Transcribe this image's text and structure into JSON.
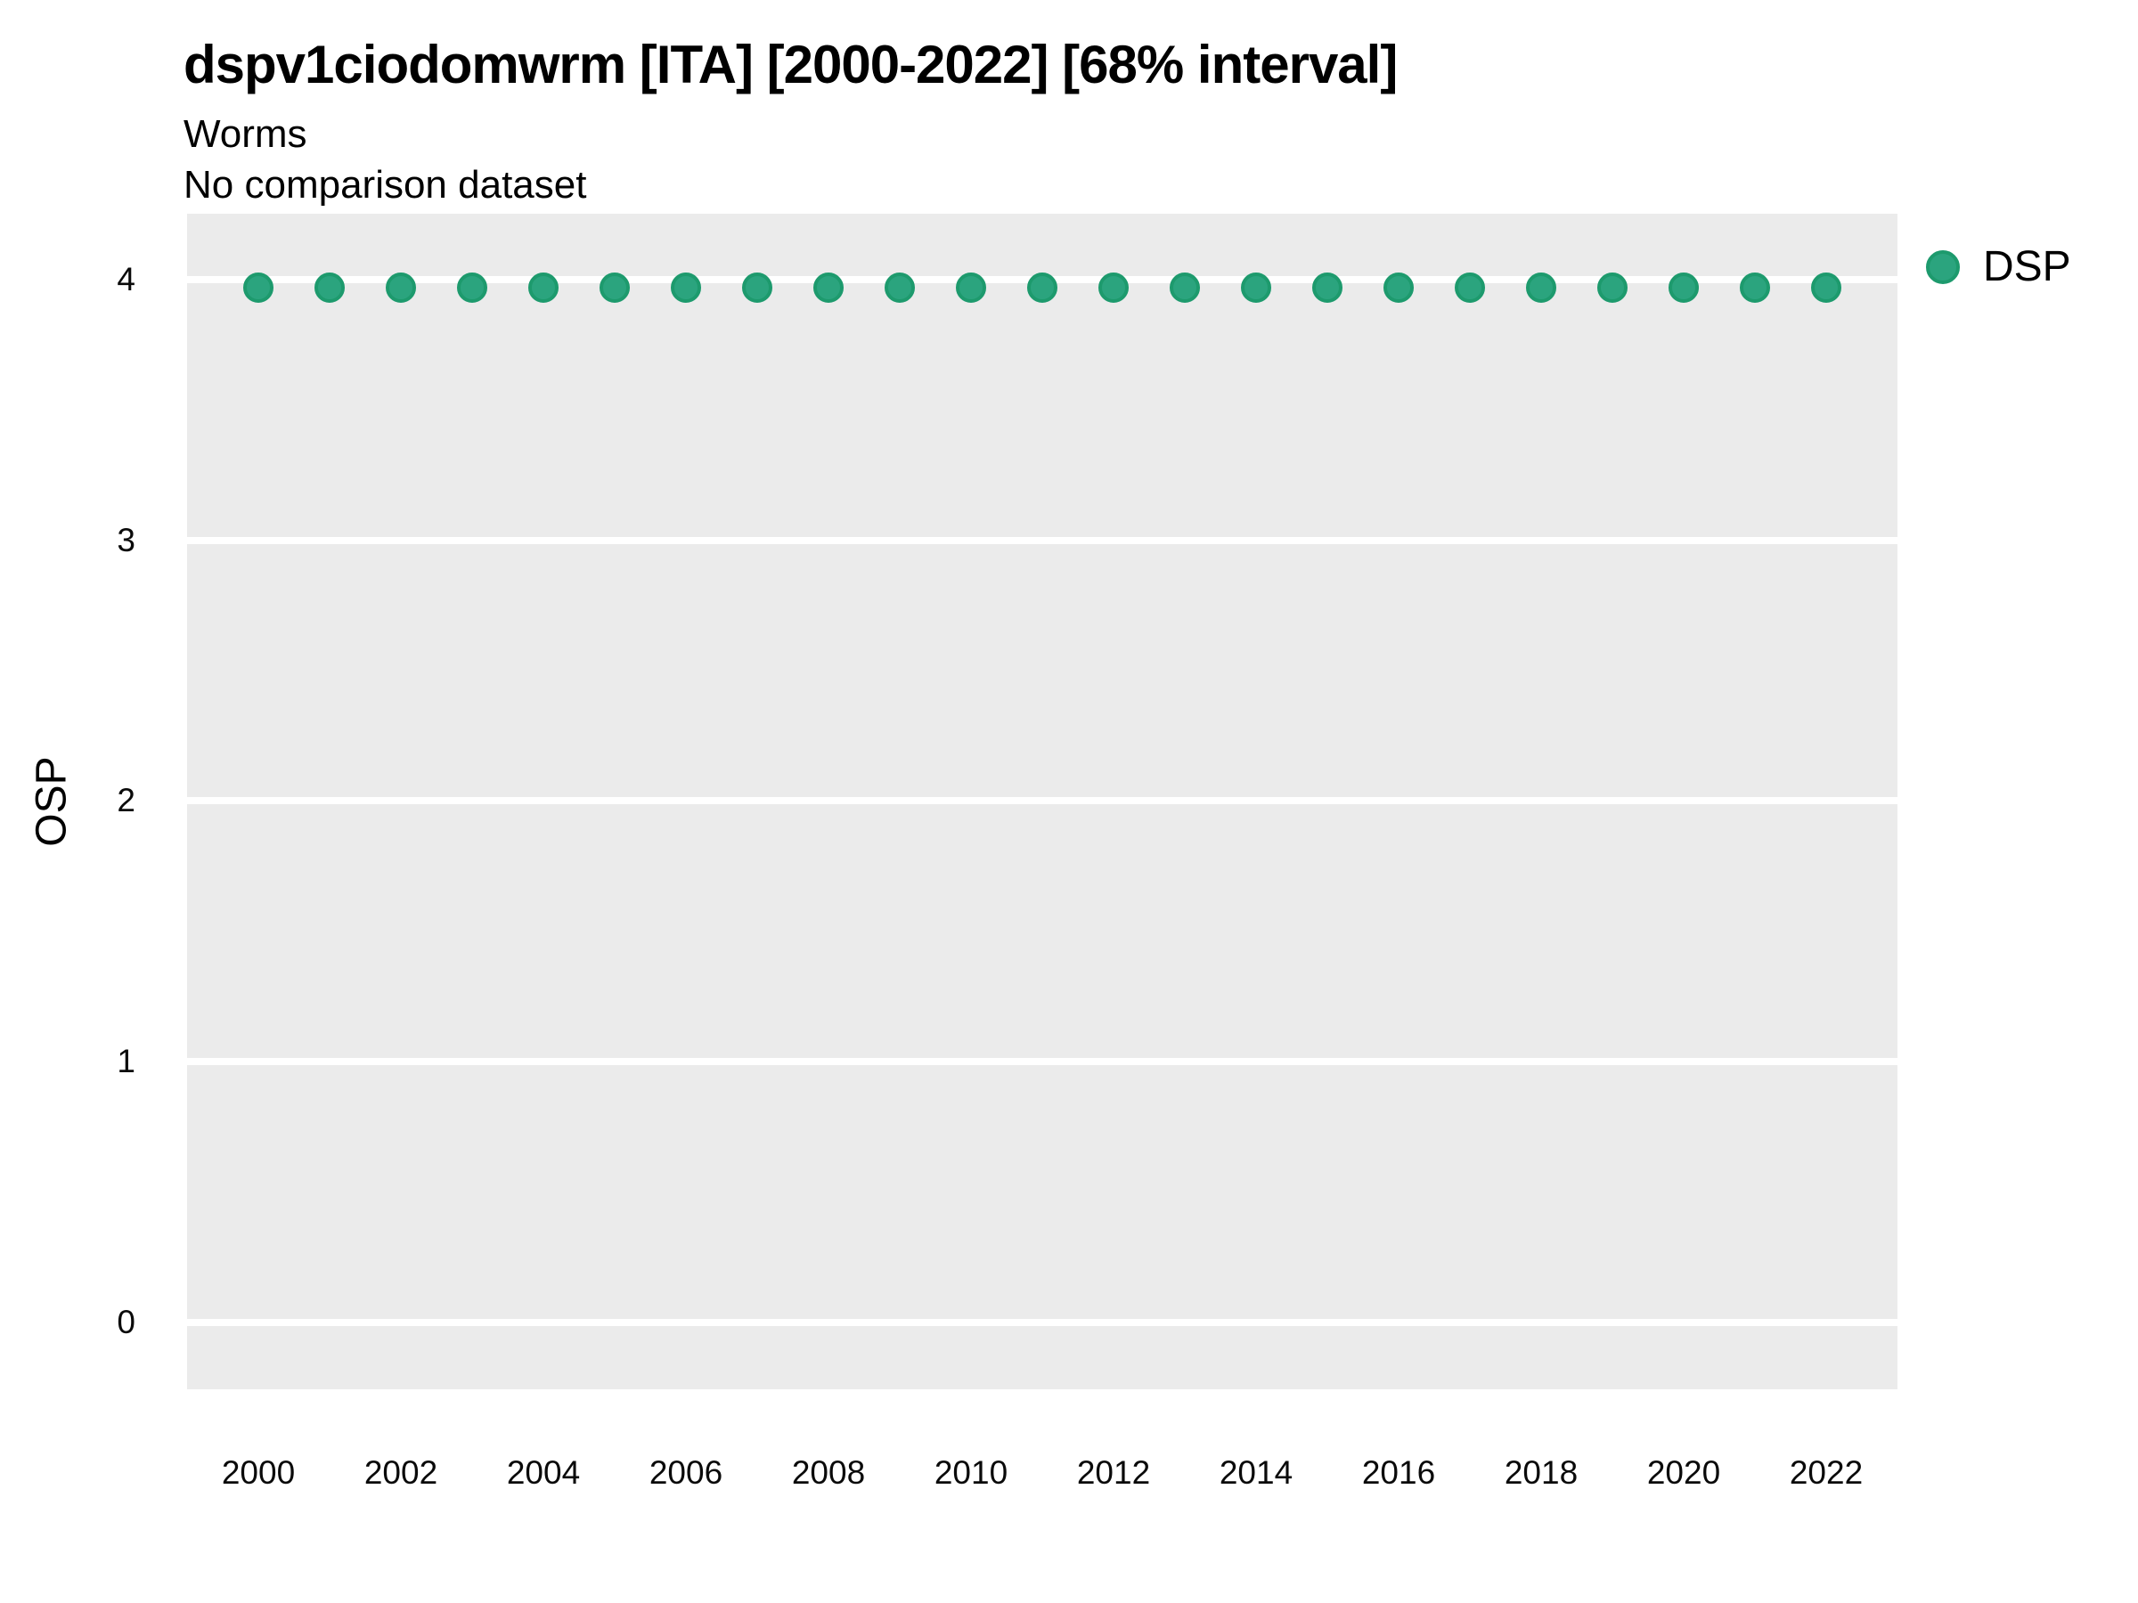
{
  "header": {
    "title": "dspv1ciodomwrm [ITA] [2000-2022] [68% interval]",
    "subtitle": "Worms",
    "note": "No comparison dataset"
  },
  "colors": {
    "panel_background": "#ebebeb",
    "gridline": "#ffffff",
    "point_fill": "#2ba47e",
    "point_edge": "#1d9a6d",
    "text": "#0a0a0a"
  },
  "legend": {
    "position": "top-right-outside",
    "items": [
      {
        "label": "DSP",
        "color": "#2ba47e",
        "edge": "#1d9a6d",
        "shape": "circle"
      }
    ]
  },
  "chart_data": {
    "type": "scatter",
    "title": "dspv1ciodomwrm [ITA] [2000-2022] [68% interval]",
    "subtitle": "Worms",
    "note": "No comparison dataset",
    "xlabel": "",
    "ylabel": "OSP",
    "xlim": [
      1999.0,
      2023.0
    ],
    "ylim": [
      -0.257,
      4.253
    ],
    "yticks": [
      0,
      1,
      2,
      3,
      4
    ],
    "xticks": [
      2000,
      2002,
      2004,
      2006,
      2008,
      2010,
      2012,
      2014,
      2016,
      2018,
      2020,
      2022
    ],
    "grid": "horizontal-major-only",
    "panel_bg": "#ebebeb",
    "legend_position": "top-right",
    "series": [
      {
        "name": "DSP",
        "color": "#2ba47e",
        "edge_color": "#1d9a6d",
        "marker": "circle",
        "x": [
          2000,
          2001,
          2002,
          2003,
          2004,
          2005,
          2006,
          2007,
          2008,
          2009,
          2010,
          2011,
          2012,
          2013,
          2014,
          2015,
          2016,
          2017,
          2018,
          2019,
          2020,
          2021,
          2022
        ],
        "y": [
          3.97,
          3.97,
          3.97,
          3.97,
          3.97,
          3.97,
          3.97,
          3.97,
          3.97,
          3.97,
          3.97,
          3.97,
          3.97,
          3.97,
          3.97,
          3.97,
          3.97,
          3.97,
          3.97,
          3.97,
          3.97,
          3.97,
          3.97
        ]
      }
    ]
  }
}
